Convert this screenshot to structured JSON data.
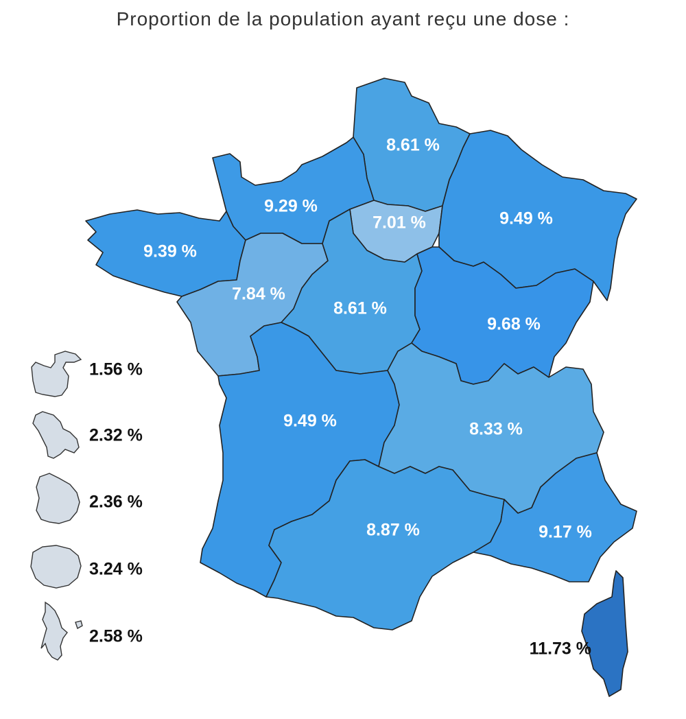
{
  "title": "Proportion de la population ayant reçu une dose :",
  "colors": {
    "light": "#d5dde6",
    "dark": "#2b73c3"
  },
  "regions": [
    {
      "name": "Hauts-de-France",
      "value": "8.61 %",
      "color": "#4aa3e3"
    },
    {
      "name": "Normandie",
      "value": "9.29 %",
      "color": "#3d9ae6"
    },
    {
      "name": "Île-de-France",
      "value": "7.01 %",
      "color": "#8ec0e8"
    },
    {
      "name": "Grand Est",
      "value": "9.49 %",
      "color": "#3a98e6"
    },
    {
      "name": "Bretagne",
      "value": "9.39 %",
      "color": "#3b99e6"
    },
    {
      "name": "Pays de la Loire",
      "value": "7.84 %",
      "color": "#6fb1e5"
    },
    {
      "name": "Centre-Val de Loire",
      "value": "8.61 %",
      "color": "#4aa3e3"
    },
    {
      "name": "Bourgogne-Franche-Comté",
      "value": "9.68 %",
      "color": "#3794e8"
    },
    {
      "name": "Nouvelle-Aquitaine",
      "value": "9.49 %",
      "color": "#3a98e6"
    },
    {
      "name": "Auvergne-Rhône-Alpes",
      "value": "8.33 %",
      "color": "#5aabe4"
    },
    {
      "name": "Occitanie",
      "value": "8.87 %",
      "color": "#44a0e4"
    },
    {
      "name": "Provence-Alpes-Côte d'Azur",
      "value": "9.17 %",
      "color": "#3f9be6"
    },
    {
      "name": "Corse",
      "value": "11.73 %",
      "color": "#2b73c3"
    }
  ],
  "overseas": [
    {
      "name": "Guadeloupe",
      "value": "1.56 %"
    },
    {
      "name": "Martinique",
      "value": "2.32 %"
    },
    {
      "name": "Guyane",
      "value": "2.36 %"
    },
    {
      "name": "La Réunion",
      "value": "3.24 %"
    },
    {
      "name": "Mayotte",
      "value": "2.58 %"
    }
  ]
}
